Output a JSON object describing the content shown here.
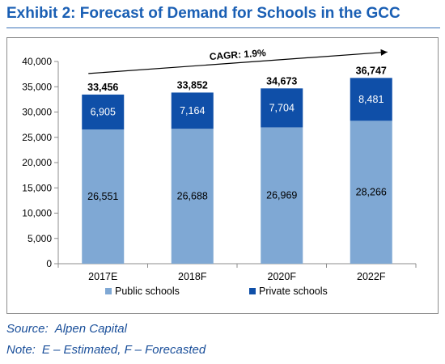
{
  "header": {
    "title": "Exhibit 2: Forecast of Demand for Schools in the GCC"
  },
  "footnotes": {
    "source_label": "Source:",
    "source_text": "Alpen Capital",
    "note_label": "Note:",
    "note_text": "E – Estimated, F – Forecasted"
  },
  "colors": {
    "title": "#1a5fb4",
    "public_schools": "#7fa8d4",
    "private_schools": "#0f4fa8",
    "axis": "#8c8c8c",
    "trend_arrow": "#000000"
  },
  "chart_data": {
    "type": "bar",
    "stacked": true,
    "categories": [
      "2017E",
      "2018F",
      "2020F",
      "2022F"
    ],
    "series": [
      {
        "name": "Public schools",
        "values": [
          26551,
          26688,
          26969,
          28266
        ],
        "labels": [
          "26,551",
          "26,688",
          "26,969",
          "28,266"
        ]
      },
      {
        "name": "Private schools",
        "values": [
          6905,
          7164,
          7704,
          8481
        ],
        "labels": [
          "6,905",
          "7,164",
          "7,704",
          "8,481"
        ]
      }
    ],
    "totals": [
      33456,
      33852,
      34673,
      36747
    ],
    "total_labels": [
      "33,456",
      "33,852",
      "34,673",
      "36,747"
    ],
    "annotation": "CAGR: 1.9%",
    "ylim": [
      0,
      40000
    ],
    "y_ticks": [
      0,
      5000,
      10000,
      15000,
      20000,
      25000,
      30000,
      35000,
      40000
    ],
    "y_tick_labels": [
      "0",
      "5,000",
      "10,000",
      "15,000",
      "20,000",
      "25,000",
      "30,000",
      "35,000",
      "40,000"
    ],
    "grid": false,
    "legend_position": "bottom",
    "xlabel": "",
    "ylabel": ""
  }
}
